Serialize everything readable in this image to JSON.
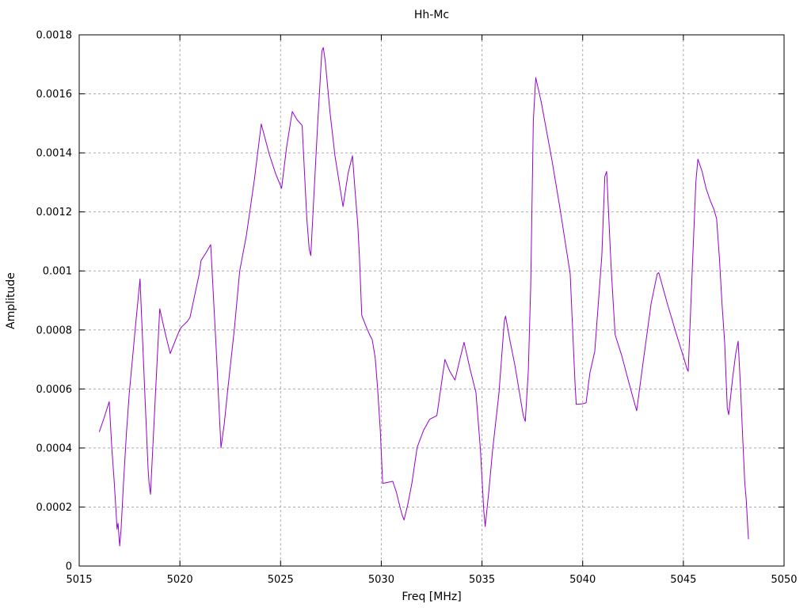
{
  "chart_data": {
    "type": "line",
    "title": "Hh-Mc",
    "xlabel": "Freq [MHz]",
    "ylabel": "Amplitude",
    "xlim": [
      5015,
      5050
    ],
    "ylim": [
      0,
      0.0018
    ],
    "grid": true,
    "legend_position": "none",
    "x_ticks": [
      {
        "value": 5015,
        "label": "5015"
      },
      {
        "value": 5020,
        "label": "5020"
      },
      {
        "value": 5025,
        "label": "5025"
      },
      {
        "value": 5030,
        "label": "5030"
      },
      {
        "value": 5035,
        "label": "5035"
      },
      {
        "value": 5040,
        "label": "5040"
      },
      {
        "value": 5045,
        "label": "5045"
      },
      {
        "value": 5050,
        "label": "5050"
      }
    ],
    "y_ticks": [
      {
        "value": 0,
        "label": "0"
      },
      {
        "value": 0.0002,
        "label": "0.0002"
      },
      {
        "value": 0.0004,
        "label": "0.0004"
      },
      {
        "value": 0.0006,
        "label": "0.0006"
      },
      {
        "value": 0.0008,
        "label": "0.0008"
      },
      {
        "value": 0.001,
        "label": "0.001"
      },
      {
        "value": 0.0012,
        "label": "0.0012"
      },
      {
        "value": 0.0014,
        "label": "0.0014"
      },
      {
        "value": 0.0016,
        "label": "0.0016"
      },
      {
        "value": 0.0018,
        "label": "0.0018"
      }
    ],
    "series": [
      {
        "name": "Hh-Mc",
        "color": "#9400d3",
        "points": [
          [
            5016.0,
            0.000455
          ],
          [
            5016.25,
            0.000505
          ],
          [
            5016.49,
            0.000557
          ],
          [
            5016.62,
            0.0004
          ],
          [
            5016.73,
            0.000295
          ],
          [
            5016.82,
            0.000196
          ],
          [
            5016.88,
            0.000125
          ],
          [
            5016.93,
            0.000145
          ],
          [
            5017.01,
            6.8e-05
          ],
          [
            5017.08,
            0.000125
          ],
          [
            5017.21,
            0.000294
          ],
          [
            5017.35,
            0.000455
          ],
          [
            5017.48,
            0.00058
          ],
          [
            5017.75,
            0.00078
          ],
          [
            5018.02,
            0.000973
          ],
          [
            5018.25,
            0.0006
          ],
          [
            5018.42,
            0.00033
          ],
          [
            5018.47,
            0.00028
          ],
          [
            5018.54,
            0.000243
          ],
          [
            5018.77,
            0.00056
          ],
          [
            5019.0,
            0.000872
          ],
          [
            5019.25,
            0.000795
          ],
          [
            5019.52,
            0.00072
          ],
          [
            5019.76,
            0.000762
          ],
          [
            5020.0,
            0.000802
          ],
          [
            5020.08,
            0.00081
          ],
          [
            5020.37,
            0.000829
          ],
          [
            5020.5,
            0.000842
          ],
          [
            5020.96,
            0.00099
          ],
          [
            5021.05,
            0.001035
          ],
          [
            5021.3,
            0.001062
          ],
          [
            5021.53,
            0.001089
          ],
          [
            5021.8,
            0.00074
          ],
          [
            5022.04,
            0.000401
          ],
          [
            5022.2,
            0.00048
          ],
          [
            5022.38,
            0.0006
          ],
          [
            5022.7,
            0.0008
          ],
          [
            5022.97,
            0.001
          ],
          [
            5023.3,
            0.00112
          ],
          [
            5023.7,
            0.00131
          ],
          [
            5024.04,
            0.001498
          ],
          [
            5024.44,
            0.001395
          ],
          [
            5024.75,
            0.00133
          ],
          [
            5025.05,
            0.00128
          ],
          [
            5025.3,
            0.00142
          ],
          [
            5025.58,
            0.00154
          ],
          [
            5025.82,
            0.001512
          ],
          [
            5026.07,
            0.001493
          ],
          [
            5026.3,
            0.00118
          ],
          [
            5026.42,
            0.001074
          ],
          [
            5026.5,
            0.001052
          ],
          [
            5026.65,
            0.00125
          ],
          [
            5026.85,
            0.00151
          ],
          [
            5027.05,
            0.001745
          ],
          [
            5027.12,
            0.001757
          ],
          [
            5027.22,
            0.00171
          ],
          [
            5027.45,
            0.00154
          ],
          [
            5027.7,
            0.00139
          ],
          [
            5028.1,
            0.001218
          ],
          [
            5028.35,
            0.00133
          ],
          [
            5028.5,
            0.001372
          ],
          [
            5028.57,
            0.00139
          ],
          [
            5028.7,
            0.00127
          ],
          [
            5028.83,
            0.00116
          ],
          [
            5028.92,
            0.00104
          ],
          [
            5029.03,
            0.00085
          ],
          [
            5029.22,
            0.000816
          ],
          [
            5029.42,
            0.000784
          ],
          [
            5029.55,
            0.000767
          ],
          [
            5029.7,
            0.000705
          ],
          [
            5029.82,
            0.0006
          ],
          [
            5029.95,
            0.00046
          ],
          [
            5030.07,
            0.00028
          ],
          [
            5030.35,
            0.000284
          ],
          [
            5030.57,
            0.000287
          ],
          [
            5030.75,
            0.00025
          ],
          [
            5030.93,
            0.0002
          ],
          [
            5031.03,
            0.000174
          ],
          [
            5031.13,
            0.000156
          ],
          [
            5031.32,
            0.00021
          ],
          [
            5031.52,
            0.000281
          ],
          [
            5031.78,
            0.000402
          ],
          [
            5032.1,
            0.00046
          ],
          [
            5032.4,
            0.000497
          ],
          [
            5032.76,
            0.00051
          ],
          [
            5033.16,
            0.0007
          ],
          [
            5033.4,
            0.00066
          ],
          [
            5033.66,
            0.00063
          ],
          [
            5033.9,
            0.0007
          ],
          [
            5034.11,
            0.000758
          ],
          [
            5034.4,
            0.00067
          ],
          [
            5034.7,
            0.000588
          ],
          [
            5034.92,
            0.000397
          ],
          [
            5035.09,
            0.000187
          ],
          [
            5035.16,
            0.000134
          ],
          [
            5035.35,
            0.00026
          ],
          [
            5035.52,
            0.000388
          ],
          [
            5035.84,
            0.000584
          ],
          [
            5036.11,
            0.00083
          ],
          [
            5036.17,
            0.000847
          ],
          [
            5036.4,
            0.00076
          ],
          [
            5036.63,
            0.000682
          ],
          [
            5036.83,
            0.0006
          ],
          [
            5037.05,
            0.00051
          ],
          [
            5037.15,
            0.00049
          ],
          [
            5037.3,
            0.00066
          ],
          [
            5037.42,
            0.00095
          ],
          [
            5037.55,
            0.00151
          ],
          [
            5037.67,
            0.001655
          ],
          [
            5037.94,
            0.001573
          ],
          [
            5038.47,
            0.001377
          ],
          [
            5038.86,
            0.001217
          ],
          [
            5039.25,
            0.001047
          ],
          [
            5039.38,
            0.00099
          ],
          [
            5039.51,
            0.000789
          ],
          [
            5039.62,
            0.00062
          ],
          [
            5039.68,
            0.000548
          ],
          [
            5040.0,
            0.00055
          ],
          [
            5040.17,
            0.000553
          ],
          [
            5040.36,
            0.000655
          ],
          [
            5040.6,
            0.000727
          ],
          [
            5040.95,
            0.00105
          ],
          [
            5041.1,
            0.00132
          ],
          [
            5041.19,
            0.001337
          ],
          [
            5041.41,
            0.001016
          ],
          [
            5041.61,
            0.000784
          ],
          [
            5041.94,
            0.000713
          ],
          [
            5042.3,
            0.00062
          ],
          [
            5042.68,
            0.000526
          ],
          [
            5043.0,
            0.00069
          ],
          [
            5043.4,
            0.00089
          ],
          [
            5043.7,
            0.00099
          ],
          [
            5043.78,
            0.000994
          ],
          [
            5044.2,
            0.00089
          ],
          [
            5044.7,
            0.000775
          ],
          [
            5045.0,
            0.00071
          ],
          [
            5045.18,
            0.000668
          ],
          [
            5045.24,
            0.00066
          ],
          [
            5045.45,
            0.00102
          ],
          [
            5045.62,
            0.0013
          ],
          [
            5045.72,
            0.001379
          ],
          [
            5045.93,
            0.001337
          ],
          [
            5046.13,
            0.001279
          ],
          [
            5046.33,
            0.001239
          ],
          [
            5046.52,
            0.001208
          ],
          [
            5046.65,
            0.001177
          ],
          [
            5046.79,
            0.001043
          ],
          [
            5046.92,
            0.000887
          ],
          [
            5047.05,
            0.000758
          ],
          [
            5047.18,
            0.000535
          ],
          [
            5047.25,
            0.000513
          ],
          [
            5047.45,
            0.00064
          ],
          [
            5047.6,
            0.00072
          ],
          [
            5047.72,
            0.000762
          ],
          [
            5047.84,
            0.000602
          ],
          [
            5047.95,
            0.00043
          ],
          [
            5048.05,
            0.000281
          ],
          [
            5048.12,
            0.000227
          ],
          [
            5048.23,
            9.2e-05
          ]
        ]
      }
    ]
  },
  "style": {
    "line_color": "#9400d3",
    "grid_color": "#ababab",
    "border_color": "#000000",
    "background": "#ffffff",
    "text_color": "#000000"
  }
}
